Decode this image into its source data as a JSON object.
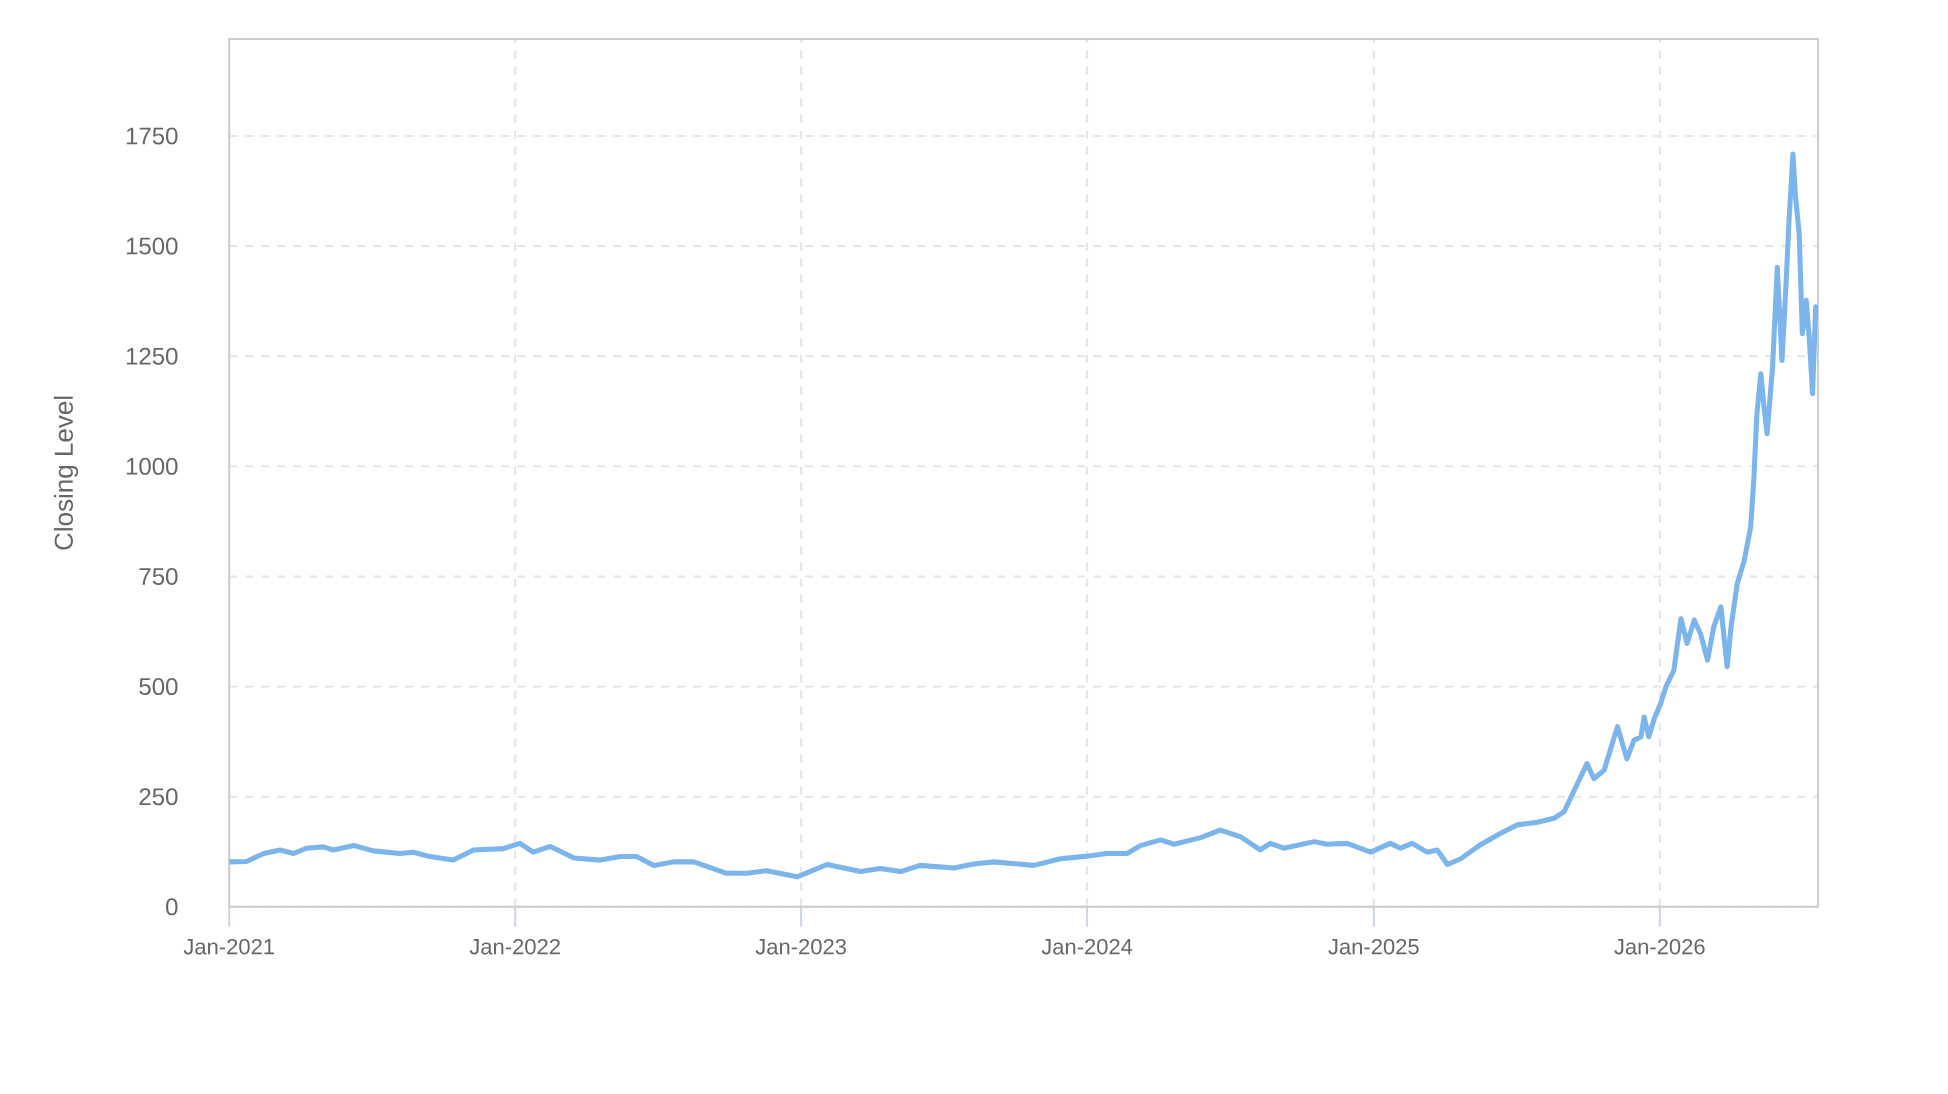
{
  "chart_data": {
    "type": "line",
    "ylabel": "Closing Level",
    "x": [
      "2021-01-01",
      "2021-01-23",
      "2021-02-14",
      "2021-03-07",
      "2021-03-24",
      "2021-04-10",
      "2021-05-01",
      "2021-05-14",
      "2021-06-09",
      "2021-07-04",
      "2021-08-07",
      "2021-08-24",
      "2021-09-14",
      "2021-10-14",
      "2021-11-09",
      "2021-12-17",
      "2022-01-07",
      "2022-01-24",
      "2022-02-15",
      "2022-03-17",
      "2022-04-20",
      "2022-05-15",
      "2022-06-05",
      "2022-06-27",
      "2022-07-22",
      "2022-08-17",
      "2022-09-28",
      "2022-10-24",
      "2022-11-18",
      "2022-12-27",
      "2023-02-03",
      "2023-03-18",
      "2023-04-12",
      "2023-05-08",
      "2023-06-02",
      "2023-07-15",
      "2023-08-09",
      "2023-09-04",
      "2023-10-25",
      "2023-11-28",
      "2024-01-01",
      "2024-01-26",
      "2024-02-21",
      "2024-03-09",
      "2024-04-04",
      "2024-04-21",
      "2024-05-25",
      "2024-06-19",
      "2024-07-15",
      "2024-08-09",
      "2024-08-22",
      "2024-09-08",
      "2024-10-17",
      "2024-11-02",
      "2024-11-28",
      "2024-12-28",
      "2025-01-22",
      "2025-02-04",
      "2025-02-19",
      "2025-03-10",
      "2025-03-23",
      "2025-04-05",
      "2025-04-22",
      "2025-05-17",
      "2025-06-12",
      "2025-07-03",
      "2025-07-29",
      "2025-08-19",
      "2025-09-01",
      "2025-09-18",
      "2025-09-30",
      "2025-10-09",
      "2025-10-22",
      "2025-11-08",
      "2025-11-20",
      "2025-11-29",
      "2025-12-08",
      "2025-12-12",
      "2025-12-18",
      "2025-12-25",
      "2026-01-02",
      "2026-01-09",
      "2026-01-19",
      "2026-01-28",
      "2026-02-05",
      "2026-02-14",
      "2026-02-22",
      "2026-03-03",
      "2026-03-11",
      "2026-03-20",
      "2026-03-28",
      "2026-04-02",
      "2026-04-10",
      "2026-04-19",
      "2026-04-27",
      "2026-05-01",
      "2026-05-05",
      "2026-05-10",
      "2026-05-14",
      "2026-05-18",
      "2026-05-25",
      "2026-05-31",
      "2026-06-06",
      "2026-06-11",
      "2026-06-15",
      "2026-06-20",
      "2026-06-23",
      "2026-06-28",
      "2026-07-02",
      "2026-07-07",
      "2026-07-11",
      "2026-07-15",
      "2026-07-19"
    ],
    "series": [
      {
        "color": "#7cb5ec",
        "values": [
          102,
          103,
          121,
          129,
          121,
          133,
          136,
          129,
          139,
          127,
          121,
          124,
          114,
          106,
          129,
          132,
          144,
          124,
          137,
          111,
          106,
          114,
          114,
          94,
          102,
          102,
          76,
          76,
          82,
          68,
          96,
          80,
          87,
          80,
          94,
          88,
          97,
          102,
          94,
          109,
          115,
          121,
          121,
          139,
          152,
          142,
          157,
          174,
          159,
          129,
          144,
          133,
          148,
          142,
          144,
          124,
          144,
          133,
          144,
          124,
          129,
          96,
          109,
          141,
          167,
          186,
          192,
          201,
          216,
          280,
          325,
          291,
          310,
          409,
          336,
          378,
          386,
          431,
          386,
          427,
          461,
          500,
          537,
          654,
          598,
          651,
          620,
          560,
          636,
          681,
          545,
          636,
          734,
          787,
          862,
          968,
          1119,
          1210,
          1135,
          1074,
          1225,
          1452,
          1240,
          1407,
          1558,
          1709,
          1618,
          1528,
          1301,
          1377,
          1286,
          1165,
          1362
        ]
      }
    ],
    "xlim": [
      "2021-01-01",
      "2026-07-22"
    ],
    "xticks": [
      {
        "value": "2021-01-01",
        "label": "Jan-2021"
      },
      {
        "value": "2022-01-01",
        "label": "Jan-2022"
      },
      {
        "value": "2023-01-01",
        "label": "Jan-2023"
      },
      {
        "value": "2024-01-01",
        "label": "Jan-2024"
      },
      {
        "value": "2025-01-01",
        "label": "Jan-2025"
      },
      {
        "value": "2026-01-01",
        "label": "Jan-2026"
      }
    ],
    "ylim": [
      0,
      1970
    ],
    "yticks": [
      0,
      250,
      500,
      750,
      1000,
      1250,
      1500,
      1750
    ],
    "grid": true,
    "line_style": "solid"
  }
}
